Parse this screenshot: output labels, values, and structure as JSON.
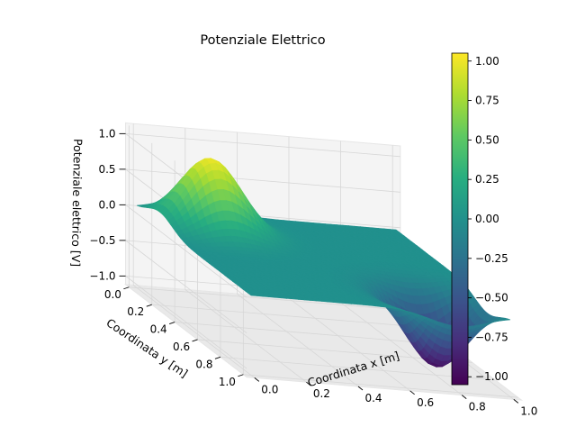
{
  "chart_data": {
    "type": "surface",
    "title": "Potenziale Elettrico",
    "xlabel": "Coordinata x [m]",
    "ylabel": "Coordinata y [m]",
    "zlabel": "Potenziale elettrico [V]",
    "xlim": [
      0,
      1
    ],
    "ylim": [
      0,
      1
    ],
    "zlim": [
      -1,
      1
    ],
    "x_ticks": [
      "0.0",
      "0.2",
      "0.4",
      "0.6",
      "0.8",
      "1.0"
    ],
    "y_ticks": [
      "0.0",
      "0.2",
      "0.4",
      "0.6",
      "0.8",
      "1.0"
    ],
    "z_ticks": [
      "−1.0",
      "−0.5",
      "0.0",
      "0.5",
      "1.0"
    ],
    "grid": true,
    "colormap": "viridis",
    "colorbar": {
      "range": [
        -1.05,
        1.05
      ],
      "ticks": [
        "−1.00",
        "−0.75",
        "−0.50",
        "−0.25",
        "0.00",
        "0.25",
        "0.50",
        "0.75",
        "1.00"
      ]
    },
    "features": [
      {
        "kind": "peak",
        "x": 0.2,
        "y": 0.2,
        "z": 1.0
      },
      {
        "kind": "valley",
        "x": 0.8,
        "y": 0.8,
        "z": -1.0
      }
    ],
    "baseline_z": 0.0
  }
}
